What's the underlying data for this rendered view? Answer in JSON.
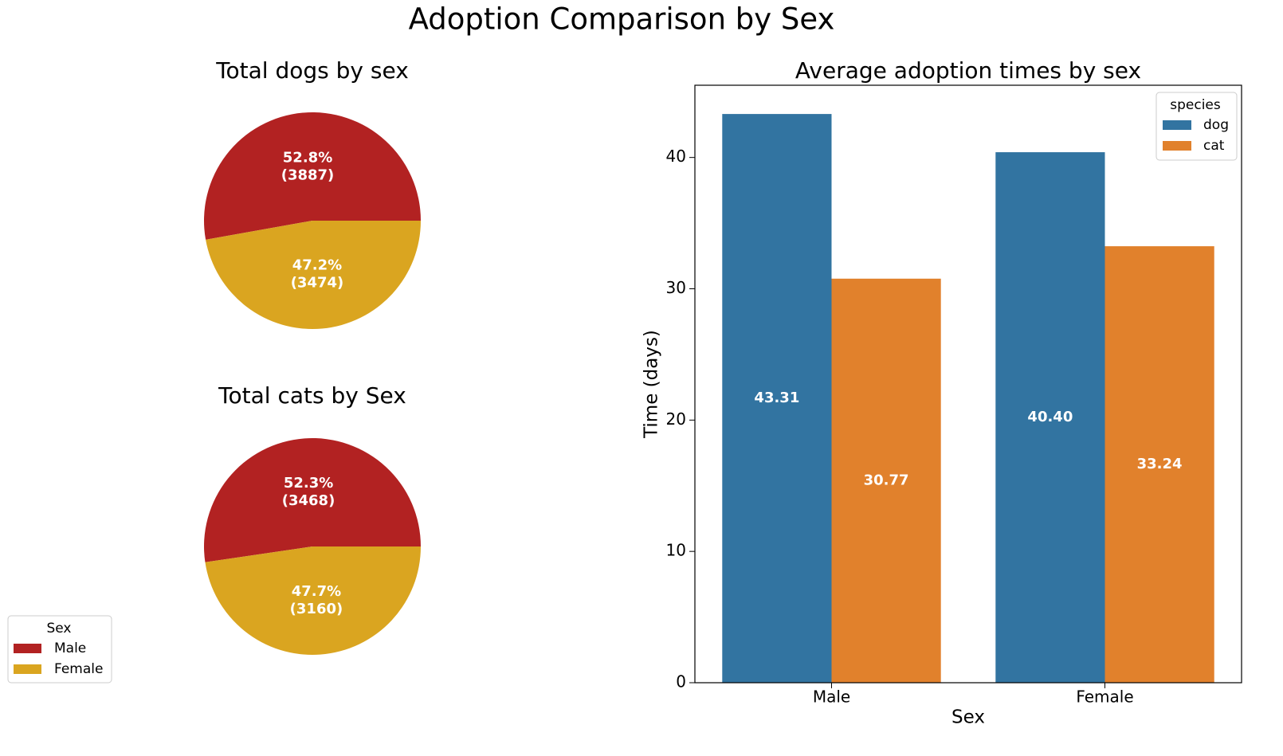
{
  "title": "Adoption Comparison by Sex",
  "chart_data": [
    {
      "type": "pie",
      "title": "Total dogs by sex",
      "categories": [
        "Male",
        "Female"
      ],
      "colors": [
        "#b22222",
        "#daa520"
      ],
      "values": [
        3887,
        3474
      ],
      "value_labels": [
        "(3887)",
        "(3474)"
      ],
      "percentages": [
        52.8,
        47.2
      ],
      "percentage_labels": [
        "52.8%",
        "47.2%"
      ]
    },
    {
      "type": "pie",
      "title": "Total cats by Sex",
      "categories": [
        "Male",
        "Female"
      ],
      "colors": [
        "#b22222",
        "#daa520"
      ],
      "values": [
        3468,
        3160
      ],
      "value_labels": [
        "(3468)",
        "(3160)"
      ],
      "percentages": [
        52.3,
        47.7
      ],
      "percentage_labels": [
        "52.3%",
        "47.7%"
      ],
      "legend_title": "Sex"
    },
    {
      "type": "bar",
      "title": "Average adoption times by sex",
      "x_label": "Sex",
      "y_label": "Time (days)",
      "categories": [
        "Male",
        "Female"
      ],
      "series": [
        {
          "name": "dog",
          "color": "#3274a1",
          "values": [
            43.31,
            40.4
          ],
          "value_labels": [
            "43.31",
            "40.40"
          ]
        },
        {
          "name": "cat",
          "color": "#e1812c",
          "values": [
            30.77,
            33.24
          ],
          "value_labels": [
            "30.77",
            "33.24"
          ]
        }
      ],
      "legend_title": "species",
      "legend": "upper right",
      "ylim": [
        0,
        45.5
      ],
      "yticks": [
        0,
        10,
        20,
        30,
        40
      ]
    }
  ]
}
